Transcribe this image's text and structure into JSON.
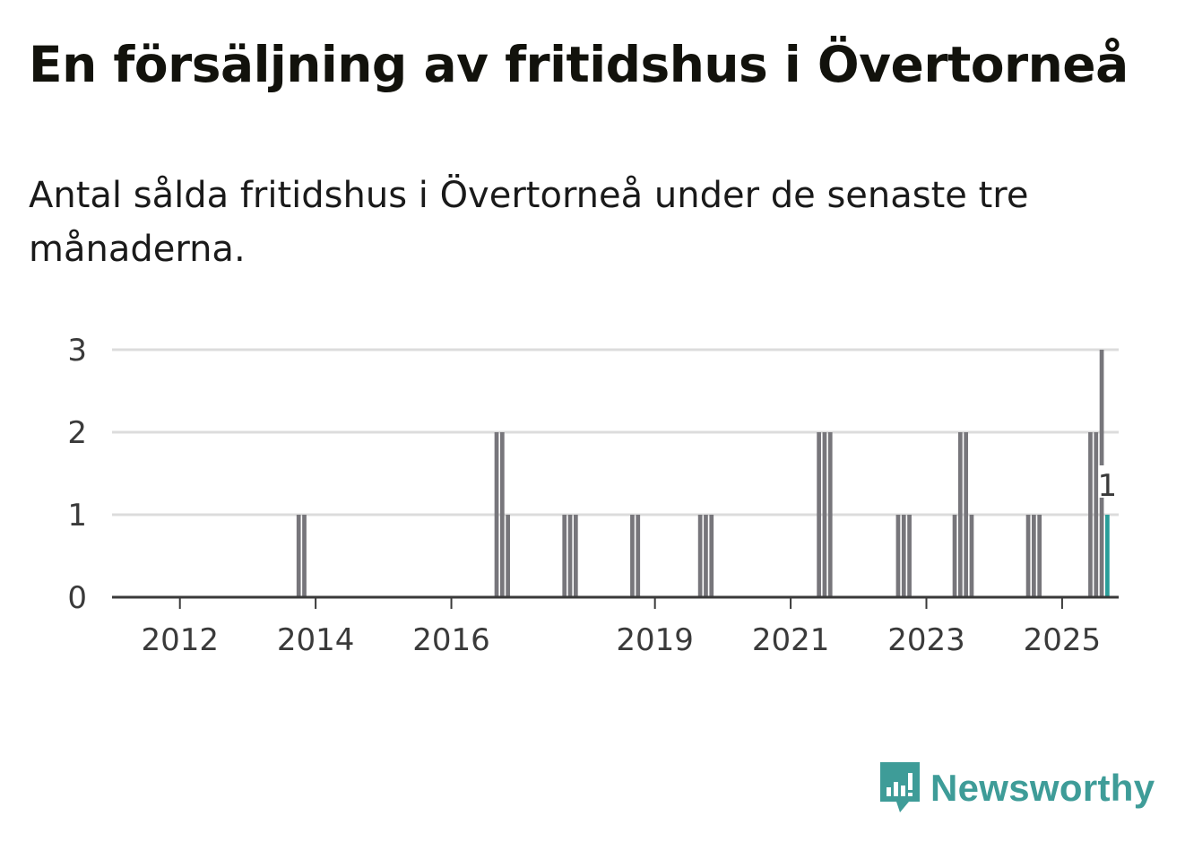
{
  "title": "En försäljning av fritidshus i Övertorneå",
  "subtitle": "Antal sålda fritidshus i Övertorneå under de senaste tre månaderna.",
  "brand": {
    "name": "Newsworthy",
    "icon": "newsworthy-logo-icon"
  },
  "colors": {
    "bar": "#77767b",
    "highlight": "#2a9d99",
    "grid": "#dcdcdc",
    "axis": "#3a3a3a",
    "brand": "#3e9c98"
  },
  "chart_data": {
    "type": "bar",
    "title": "En försäljning av fritidshus i Övertorneå",
    "xlabel": "",
    "ylabel": "",
    "ylim": [
      0,
      3
    ],
    "yticks": [
      0,
      1,
      2,
      3
    ],
    "xticks": [
      "2012",
      "2014",
      "2016",
      "2019",
      "2021",
      "2023",
      "2025"
    ],
    "grid": true,
    "x_unit": "months since Jan 2011",
    "xlim": [
      0,
      178
    ],
    "xtick_positions": [
      12,
      36,
      60,
      96,
      120,
      144,
      168
    ],
    "series": [
      {
        "name": "Sålda fritidshus",
        "points": [
          {
            "x": 33,
            "value": 1
          },
          {
            "x": 34,
            "value": 1
          },
          {
            "x": 68,
            "value": 2
          },
          {
            "x": 69,
            "value": 2
          },
          {
            "x": 70,
            "value": 1
          },
          {
            "x": 80,
            "value": 1
          },
          {
            "x": 81,
            "value": 1
          },
          {
            "x": 82,
            "value": 1
          },
          {
            "x": 92,
            "value": 1
          },
          {
            "x": 93,
            "value": 1
          },
          {
            "x": 104,
            "value": 1
          },
          {
            "x": 105,
            "value": 1
          },
          {
            "x": 106,
            "value": 1
          },
          {
            "x": 125,
            "value": 2
          },
          {
            "x": 126,
            "value": 2
          },
          {
            "x": 127,
            "value": 2
          },
          {
            "x": 139,
            "value": 1
          },
          {
            "x": 140,
            "value": 1
          },
          {
            "x": 141,
            "value": 1
          },
          {
            "x": 149,
            "value": 1
          },
          {
            "x": 150,
            "value": 2
          },
          {
            "x": 151,
            "value": 2
          },
          {
            "x": 152,
            "value": 1
          },
          {
            "x": 162,
            "value": 1
          },
          {
            "x": 163,
            "value": 1
          },
          {
            "x": 164,
            "value": 1
          },
          {
            "x": 173,
            "value": 2
          },
          {
            "x": 174,
            "value": 2
          },
          {
            "x": 175,
            "value": 3
          },
          {
            "x": 176,
            "value": 1,
            "highlight": true
          }
        ]
      }
    ],
    "annotation": {
      "x": 176,
      "value": 1,
      "label": "1"
    }
  }
}
